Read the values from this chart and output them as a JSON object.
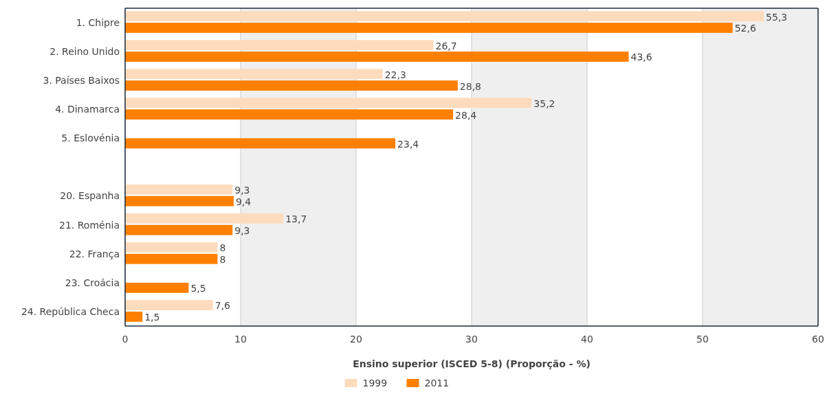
{
  "chart_data": {
    "type": "bar",
    "orientation": "horizontal",
    "xlabel": "Ensino superior (ISCED 5-8) (Proporção - %)",
    "categories": [
      "1. Chipre",
      "2. Reino Unido",
      "3. Países Baixos",
      "4. Dinamarca",
      "5. Eslovénia",
      null,
      "20. Espanha",
      "21. Roménia",
      "22. França",
      "23. Croácia",
      "24. República Checa"
    ],
    "series": [
      {
        "name": "1999",
        "color": "#fddcbd",
        "values": [
          55.3,
          26.7,
          22.3,
          35.2,
          null,
          null,
          9.3,
          13.7,
          8,
          null,
          7.6
        ],
        "value_labels": [
          "55,3",
          "26,7",
          "22,3",
          "35,2",
          null,
          null,
          "9,3",
          "13,7",
          "8",
          null,
          "7,6"
        ]
      },
      {
        "name": "2011",
        "color": "#ff8000",
        "values": [
          52.6,
          43.6,
          28.8,
          28.4,
          23.4,
          null,
          9.4,
          9.3,
          8,
          5.5,
          1.5
        ],
        "value_labels": [
          "52,6",
          "43,6",
          "28,8",
          "28,4",
          "23,4",
          null,
          "9,4",
          "9,3",
          "8",
          "5,5",
          "1,5"
        ]
      }
    ],
    "xlim": [
      0,
      60
    ],
    "xticks": [
      0,
      10,
      20,
      30,
      40,
      50,
      60
    ],
    "grid": "x",
    "legend": "bottom",
    "bands": [
      {
        "axis": "x",
        "from": 10,
        "to": 20,
        "color": "#efefef"
      },
      {
        "axis": "x",
        "from": 30,
        "to": 40,
        "color": "#efefef"
      },
      {
        "axis": "x",
        "from": 50,
        "to": 60,
        "color": "#efefef"
      }
    ]
  }
}
